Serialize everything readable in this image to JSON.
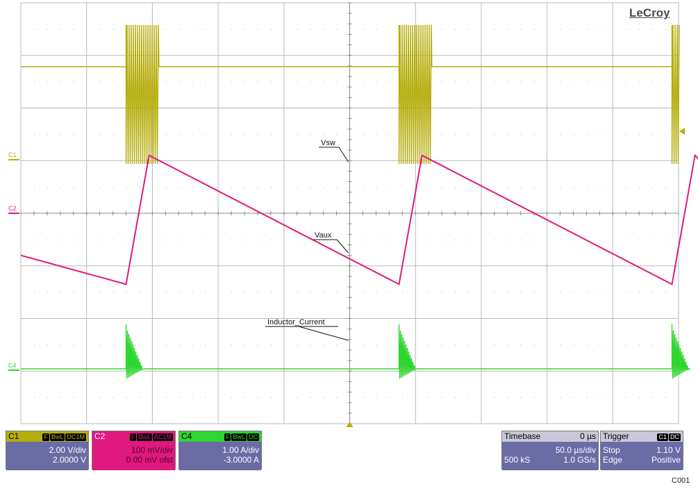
{
  "logo": "LeCroy",
  "figure_id": "C001",
  "colors": {
    "c1": "#b5ad0c",
    "c2": "#e0197e",
    "c4": "#2fd62f",
    "grid": "#b8b8b8",
    "panel": "#6b6ba6"
  },
  "chart_data": {
    "type": "line",
    "title": "",
    "grid": true,
    "x_divisions": 10,
    "y_divisions": 8,
    "annotations": [
      "Vsw",
      "Vaux",
      "Inductor_Current"
    ],
    "channel_markers": [
      "C1",
      "C2",
      "C4"
    ],
    "series": [
      {
        "name": "C1",
        "label": "Vsw",
        "scale": "2.00 V/div",
        "burst_start_x_div": [
          1.6,
          5.75,
          9.9
        ],
        "burst_end_x_div": [
          2.1,
          6.25,
          10.4
        ]
      },
      {
        "name": "C2",
        "label": "Vaux",
        "scale": "100 mV/div",
        "x_div": [
          0.0,
          1.6,
          1.95,
          5.75,
          6.1,
          9.9,
          10.25,
          10.4
        ],
        "y_div": [
          -0.8,
          -1.35,
          1.1,
          -1.35,
          1.1,
          -1.35,
          1.1,
          0.9
        ]
      },
      {
        "name": "C4",
        "label": "Inductor_Current",
        "scale": "1.00 A/div",
        "pulse_x_div": [
          1.6,
          5.75,
          9.9
        ]
      }
    ]
  },
  "panels": {
    "c1": {
      "name": "C1",
      "badges": [
        "F",
        "BwL",
        "DC1M"
      ],
      "row1": "2.00 V/div",
      "row2": "2.0000 V"
    },
    "c2": {
      "name": "C2",
      "badges": [
        "F",
        "BwL",
        "AC1M"
      ],
      "row1": "100 mV/div",
      "row2": "0.00 mV ofst"
    },
    "c4": {
      "name": "C4",
      "badges": [
        "F",
        "BwL",
        "DC"
      ],
      "row1": "1.00 A/div",
      "row2": "-3.0000 A"
    },
    "timebase": {
      "name": "Timebase",
      "pos": "0 µs",
      "row1": "50.0 µs/div",
      "row2_left": "500 kS",
      "row2_right": "1.0 GS/s"
    },
    "trigger": {
      "name": "Trigger",
      "badges": [
        "C1",
        "DC"
      ],
      "row1": "1.10 V",
      "row2_left": "Stop",
      "row2_mid_left": "Edge",
      "row2_right": "Positive"
    }
  }
}
